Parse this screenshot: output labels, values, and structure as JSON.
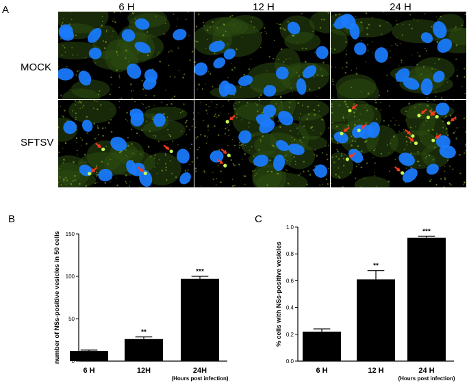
{
  "panel_a": {
    "letter": "A",
    "columns": [
      "6 H",
      "12 H",
      "24 H"
    ],
    "rows": [
      "MOCK",
      "SFTSV"
    ],
    "arrow_counts": [
      [
        0,
        0,
        0
      ],
      [
        4,
        3,
        12
      ]
    ]
  },
  "colors": {
    "background": "#000000",
    "nucleus": "#1a7cff",
    "cytoplasm_speckle": "#9ec832",
    "vesicle": "#c8ff50",
    "arrow": "#ff3a1e",
    "bar": "#000000"
  },
  "chart_data": [
    {
      "type": "bar",
      "panel_label": "B",
      "categories": [
        "6 H",
        "12H",
        "24H"
      ],
      "values": [
        12,
        26,
        97
      ],
      "errors": [
        1,
        2.5,
        3
      ],
      "significance": [
        "",
        "**",
        "***"
      ],
      "ylabel": "number of NSs-positive vesicles in 50 cells",
      "xnote": "(Hours post infection)",
      "ylim": [
        0,
        150
      ],
      "yticks": [
        0,
        50,
        100,
        150
      ],
      "grid": false
    },
    {
      "type": "bar",
      "panel_label": "C",
      "categories": [
        "6 H",
        "12 H",
        "24 H"
      ],
      "values": [
        0.22,
        0.61,
        0.92
      ],
      "errors": [
        0.02,
        0.065,
        0.012
      ],
      "significance": [
        "",
        "**",
        "***"
      ],
      "ylabel": "% cells with NSs-positive vesicles",
      "xnote": "(Hours post  infection)",
      "ylim": [
        0,
        1.0
      ],
      "yticks": [
        "0.0",
        "0.2",
        "0.4",
        "0.6",
        "0.8",
        "1.0"
      ],
      "grid": false
    }
  ]
}
